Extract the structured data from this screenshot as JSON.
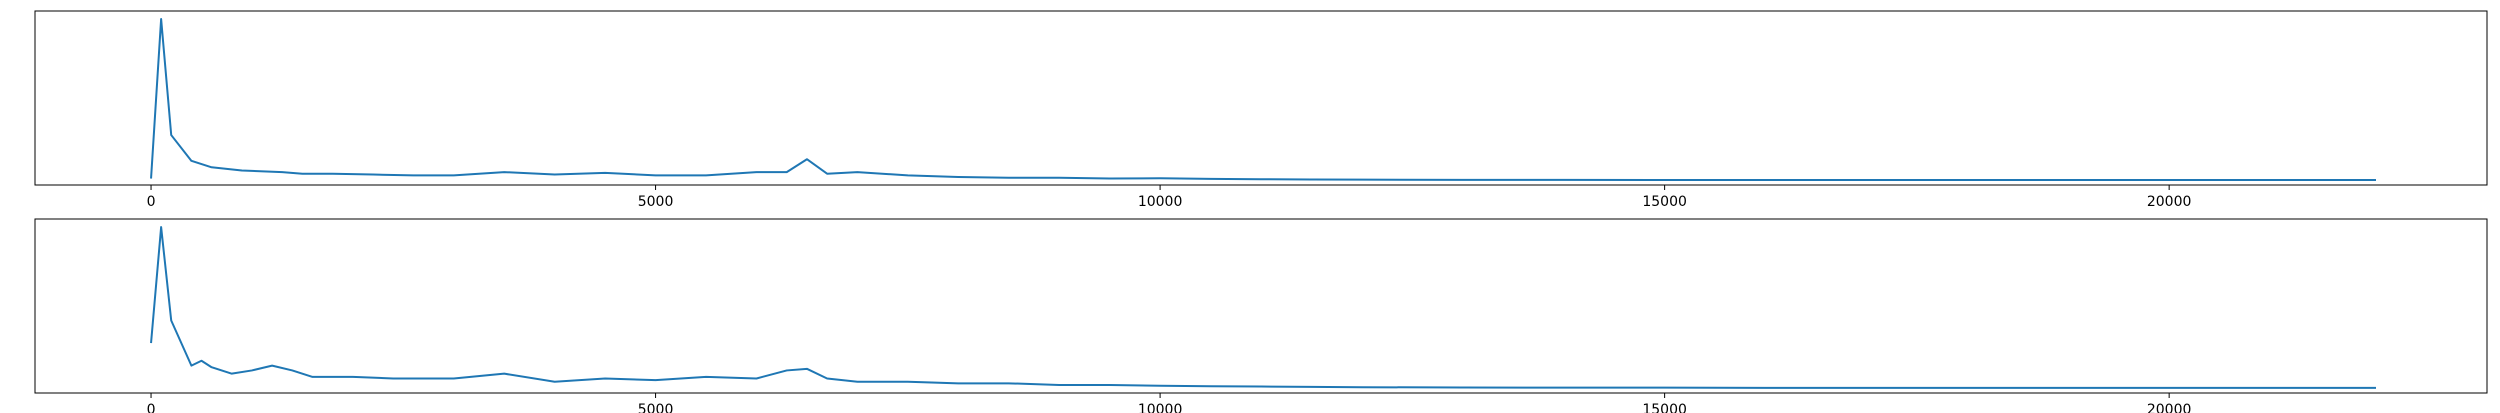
{
  "chart_data": [
    {
      "type": "line",
      "title": "",
      "xlabel": "",
      "ylabel": "",
      "xlim": [
        -1150,
        23150
      ],
      "ylim": [
        -0.03,
        1.05
      ],
      "x_ticks": [
        0,
        5000,
        10000,
        15000,
        20000
      ],
      "x_tick_labels": [
        "0",
        "5000",
        "10000",
        "15000",
        "20000"
      ],
      "y_ticks_visible": false,
      "grid": false,
      "line_color": "#1f77b4",
      "x": [
        0,
        100,
        200,
        400,
        600,
        900,
        1300,
        1500,
        1800,
        2200,
        2600,
        3000,
        3500,
        4000,
        4500,
        5000,
        5500,
        6000,
        6300,
        6500,
        6700,
        7000,
        7500,
        8000,
        8500,
        9000,
        9500,
        10000,
        10500,
        11000,
        11500,
        12000,
        13000,
        14000,
        15000,
        16000,
        17000,
        18000,
        19000,
        20000,
        21000,
        22050
      ],
      "y": [
        0.01,
        1.0,
        0.28,
        0.12,
        0.08,
        0.06,
        0.05,
        0.04,
        0.04,
        0.035,
        0.03,
        0.03,
        0.05,
        0.035,
        0.045,
        0.03,
        0.03,
        0.05,
        0.05,
        0.13,
        0.04,
        0.05,
        0.03,
        0.02,
        0.015,
        0.015,
        0.01,
        0.012,
        0.008,
        0.006,
        0.004,
        0.003,
        0.002,
        0.002,
        0.001,
        0.001,
        0.001,
        0.001,
        0.001,
        0.001,
        0.001,
        0.001
      ]
    },
    {
      "type": "line",
      "title": "",
      "xlabel": "",
      "ylabel": "",
      "xlim": [
        -1150,
        23150
      ],
      "ylim": [
        -0.03,
        1.05
      ],
      "x_ticks": [
        0,
        5000,
        10000,
        15000,
        20000
      ],
      "x_tick_labels": [
        "0",
        "5000",
        "10000",
        "15000",
        "20000"
      ],
      "y_ticks_visible": false,
      "grid": false,
      "line_color": "#1f77b4",
      "x": [
        0,
        100,
        200,
        400,
        500,
        600,
        800,
        1000,
        1200,
        1400,
        1600,
        2000,
        2400,
        3000,
        3500,
        4000,
        4500,
        5000,
        5500,
        6000,
        6300,
        6500,
        6700,
        7000,
        7500,
        8000,
        8500,
        9000,
        9500,
        10000,
        10500,
        11000,
        11500,
        12000,
        13000,
        14000,
        15000,
        16000,
        17000,
        18000,
        19000,
        20000,
        21000,
        22050
      ],
      "y": [
        0.28,
        1.0,
        0.42,
        0.14,
        0.17,
        0.13,
        0.09,
        0.11,
        0.14,
        0.11,
        0.07,
        0.07,
        0.06,
        0.06,
        0.09,
        0.04,
        0.06,
        0.05,
        0.07,
        0.06,
        0.11,
        0.12,
        0.06,
        0.04,
        0.04,
        0.03,
        0.03,
        0.02,
        0.02,
        0.015,
        0.012,
        0.01,
        0.008,
        0.006,
        0.004,
        0.003,
        0.003,
        0.002,
        0.002,
        0.002,
        0.002,
        0.002,
        0.002,
        0.002
      ]
    }
  ]
}
